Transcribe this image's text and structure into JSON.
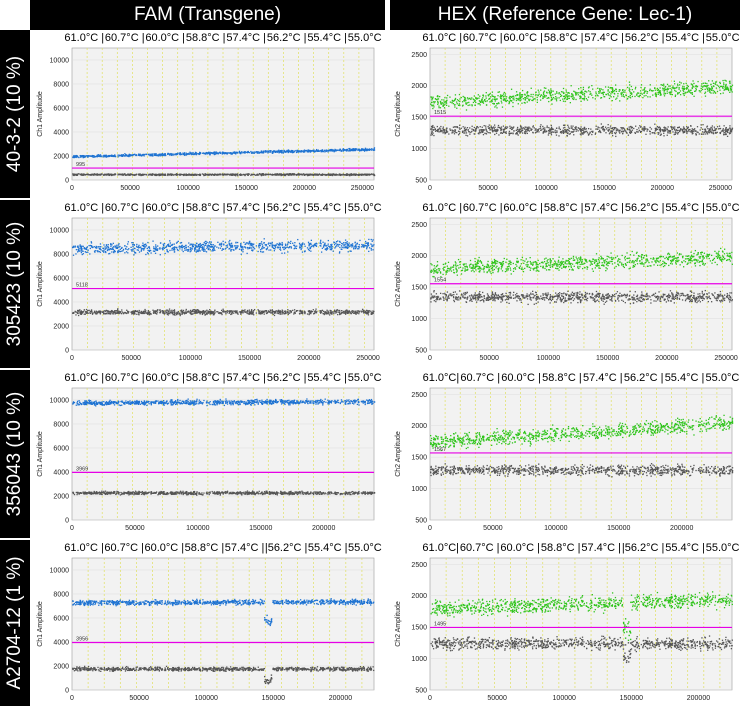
{
  "columns": {
    "fam": "FAM (Transgene)",
    "hex": "HEX (Reference Gene: Lec-1)"
  },
  "rows": [
    "40-3-2 (10 %)",
    "305423 (10 %)",
    "356043 (10 %)",
    "A2704-12 (1 %)"
  ],
  "colors": {
    "fam_positive": "#1e73d2",
    "hex_positive": "#2ec41a",
    "negative": "#555555",
    "threshold": "#e600e6",
    "well_divider": "#e0e060",
    "plot_bg": "#f2f2f2"
  },
  "chart_data": [
    {
      "type": "scatter",
      "panel": "r0-fam",
      "channel": "FAM",
      "row": 0,
      "ylabel": "Ch1 Amplitude",
      "yticks": [
        "0",
        "2000",
        "4000",
        "6000",
        "8000",
        "10000"
      ],
      "ylim": [
        0,
        11000
      ],
      "xticks": [
        "0",
        "50000",
        "100000",
        "150000",
        "200000",
        "250000"
      ],
      "xlim": [
        0,
        260000
      ],
      "temps": [
        "61.0°C",
        "60.7°C",
        "60.0°C",
        "58.8°C",
        "57.4°C",
        "56.2°C",
        "55.4°C",
        "55.0°C"
      ],
      "threshold": 995,
      "threshold_label": "995",
      "pos_start": 2000,
      "pos_end": 2600,
      "pos_spread": 150,
      "neg_level": 500,
      "neg_spread": 100,
      "dividers": [
        13000,
        26000,
        39000,
        52000,
        65000,
        78000,
        91000,
        104000,
        117000,
        130000,
        143000,
        156000,
        169000,
        182000,
        195000,
        208000,
        221000,
        234000,
        247000
      ],
      "gap": null
    },
    {
      "type": "scatter",
      "panel": "r0-hex",
      "channel": "HEX",
      "row": 0,
      "ylabel": "Ch2 Amplitude",
      "yticks": [
        "500",
        "1000",
        "1500",
        "2000",
        "2500"
      ],
      "ylim": [
        500,
        2600
      ],
      "xticks": [
        "0",
        "50000",
        "100000",
        "150000",
        "200000",
        "250000"
      ],
      "xlim": [
        0,
        260000
      ],
      "temps": [
        "61.0°C",
        "60.7°C",
        "60.0°C",
        "58.8°C",
        "57.4°C",
        "56.2°C",
        "55.4°C",
        "55.0°C"
      ],
      "threshold": 1515,
      "threshold_label": "1515",
      "pos_start": 1750,
      "pos_end": 2000,
      "pos_spread": 170,
      "neg_level": 1300,
      "neg_spread": 110,
      "dividers": [
        13000,
        26000,
        39000,
        52000,
        65000,
        78000,
        91000,
        104000,
        117000,
        130000,
        143000,
        156000,
        169000,
        182000,
        195000,
        208000,
        221000,
        234000,
        247000
      ],
      "gap": null
    },
    {
      "type": "scatter",
      "panel": "r1-fam",
      "channel": "FAM",
      "row": 1,
      "ylabel": "Ch1 Amplitude",
      "yticks": [
        "0",
        "2000",
        "4000",
        "6000",
        "8000",
        "10000"
      ],
      "ylim": [
        0,
        11000
      ],
      "xticks": [
        "0",
        "50000",
        "100000",
        "150000",
        "200000",
        "250000"
      ],
      "xlim": [
        0,
        255000
      ],
      "temps": [
        "61.0°C",
        "60.7°C",
        "60.0°C",
        "58.8°C",
        "57.4°C",
        "56.2°C",
        "55.4°C",
        "55.0°C"
      ],
      "threshold": 5118,
      "threshold_label": "5118",
      "pos_start": 8500,
      "pos_end": 8800,
      "pos_spread": 700,
      "neg_level": 3200,
      "neg_spread": 300,
      "dividers": [
        13000,
        26000,
        39000,
        52000,
        65000,
        78000,
        91000,
        104000,
        117000,
        130000,
        143000,
        156000,
        169000,
        182000,
        195000,
        208000,
        221000,
        234000,
        247000
      ],
      "gap": null
    },
    {
      "type": "scatter",
      "panel": "r1-hex",
      "channel": "HEX",
      "row": 1,
      "ylabel": "Ch2 Amplitude",
      "yticks": [
        "500",
        "1000",
        "1500",
        "2000",
        "2500"
      ],
      "ylim": [
        500,
        2600
      ],
      "xticks": [
        "0",
        "50000",
        "100000",
        "150000",
        "200000",
        "250000"
      ],
      "xlim": [
        0,
        255000
      ],
      "temps": [
        "61.0°C",
        "60.7°C",
        "60.0°C",
        "58.8°C",
        "57.4°C",
        "56.2°C",
        "55.4°C",
        "55.0°C"
      ],
      "threshold": 1554,
      "threshold_label": "1554",
      "pos_start": 1800,
      "pos_end": 2000,
      "pos_spread": 170,
      "neg_level": 1350,
      "neg_spread": 120,
      "dividers": [
        13000,
        26000,
        39000,
        52000,
        65000,
        78000,
        91000,
        104000,
        117000,
        130000,
        143000,
        156000,
        169000,
        182000,
        195000,
        208000,
        221000,
        234000,
        247000
      ],
      "gap": null
    },
    {
      "type": "scatter",
      "panel": "r2-fam",
      "channel": "FAM",
      "row": 2,
      "ylabel": "Ch1 Amplitude",
      "yticks": [
        "0",
        "2000",
        "4000",
        "6000",
        "8000",
        "10000"
      ],
      "ylim": [
        0,
        11000
      ],
      "xticks": [
        "0",
        "50000",
        "100000",
        "150000",
        "200000"
      ],
      "xlim": [
        0,
        240000
      ],
      "temps": [
        "61.0°C",
        "60.7°C",
        "60.0°C",
        "58.8°C",
        "57.4°C",
        "56.2°C",
        "55.4°C",
        "55.0°C"
      ],
      "threshold": 3969,
      "threshold_label": "3969",
      "pos_start": 9800,
      "pos_end": 9900,
      "pos_spread": 300,
      "neg_level": 2300,
      "neg_spread": 200,
      "dividers": [
        12000,
        24000,
        36000,
        48000,
        60000,
        72000,
        84000,
        96000,
        108000,
        120000,
        132000,
        144000,
        156000,
        168000,
        180000,
        192000,
        204000,
        216000,
        228000
      ],
      "gap": null
    },
    {
      "type": "scatter",
      "panel": "r2-hex",
      "channel": "HEX",
      "row": 2,
      "ylabel": "Ch2 Amplitude",
      "yticks": [
        "500",
        "1000",
        "1500",
        "2000",
        "2500"
      ],
      "ylim": [
        500,
        2600
      ],
      "xticks": [
        "0",
        "50000",
        "100000",
        "150000",
        "200000"
      ],
      "xlim": [
        0,
        240000
      ],
      "temps": [
        "61.0°C|",
        "60.7°C",
        "60.0°C",
        "58.8°C",
        "57.4°C",
        "56.2°C",
        "55.4°C",
        "55.0°C"
      ],
      "threshold": 1567,
      "threshold_label": "1567",
      "pos_start": 1750,
      "pos_end": 2050,
      "pos_spread": 170,
      "neg_level": 1300,
      "neg_spread": 120,
      "dividers": [
        12000,
        24000,
        36000,
        48000,
        60000,
        72000,
        84000,
        96000,
        108000,
        120000,
        132000,
        144000,
        156000,
        168000,
        180000,
        192000,
        204000,
        216000,
        228000
      ],
      "gap": null
    },
    {
      "type": "scatter",
      "panel": "r3-fam",
      "channel": "FAM",
      "row": 3,
      "ylabel": "Ch1 Amplitude",
      "yticks": [
        "0",
        "2000",
        "4000",
        "6000",
        "8000",
        "10000"
      ],
      "ylim": [
        0,
        11000
      ],
      "xticks": [
        "0",
        "50000",
        "100000",
        "150000",
        "200000"
      ],
      "xlim": [
        0,
        225000
      ],
      "temps": [
        "61.0°C",
        "60.7°C",
        "60.0°C",
        "58.8°C",
        "57.4°C",
        "|56.2°C",
        "55.4°C",
        "55.0°C"
      ],
      "threshold": 3956,
      "threshold_label": "3956",
      "pos_start": 7300,
      "pos_end": 7400,
      "pos_spread": 300,
      "neg_level": 1800,
      "neg_spread": 250,
      "dividers": [
        12000,
        24000,
        36000,
        48000,
        60000,
        72000,
        84000,
        96000,
        108000,
        120000,
        132000,
        144000,
        156000,
        168000,
        180000,
        192000,
        204000,
        216000
      ],
      "gap": [
        143000,
        149000
      ]
    },
    {
      "type": "scatter",
      "panel": "r3-hex",
      "channel": "HEX",
      "row": 3,
      "ylabel": "Ch2 Amplitude",
      "yticks": [
        "500",
        "1000",
        "1500",
        "2000",
        "2500"
      ],
      "ylim": [
        500,
        2600
      ],
      "xticks": [
        "0",
        "50000",
        "100000",
        "150000",
        "200000"
      ],
      "xlim": [
        0,
        225000
      ],
      "temps": [
        "61.0°C|",
        "60.7°C",
        "60.0°C",
        "58.8°C",
        "57.4°C",
        "|56.2°C",
        "55.4°C",
        "55.0°C"
      ],
      "threshold": 1495,
      "threshold_label": "1495",
      "pos_start": 1800,
      "pos_end": 1950,
      "pos_spread": 170,
      "neg_level": 1250,
      "neg_spread": 140,
      "dividers": [
        12000,
        24000,
        36000,
        48000,
        60000,
        72000,
        84000,
        96000,
        108000,
        120000,
        132000,
        144000,
        156000,
        168000,
        180000,
        192000,
        204000,
        216000
      ],
      "gap": [
        143000,
        149000
      ]
    }
  ]
}
